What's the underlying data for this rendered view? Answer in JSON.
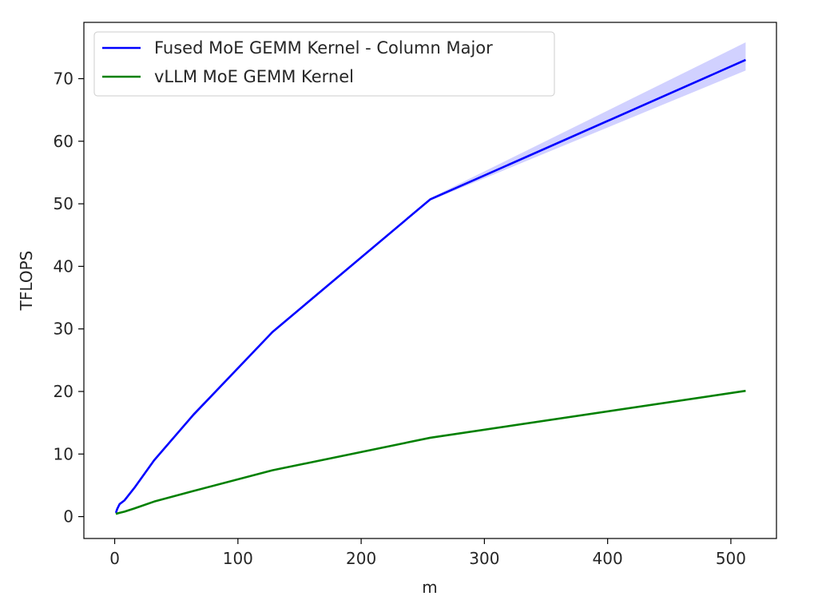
{
  "chart_data": {
    "type": "line",
    "title": "",
    "xlabel": "m",
    "ylabel": "TFLOPS",
    "xlim": [
      -25,
      537
    ],
    "ylim": [
      -3.5,
      79
    ],
    "xticks": [
      0,
      100,
      200,
      300,
      400,
      500
    ],
    "yticks": [
      0,
      10,
      20,
      30,
      40,
      50,
      60,
      70
    ],
    "grid": false,
    "legend_position": "top-left",
    "series": [
      {
        "name": "Fused MoE GEMM Kernel - Column Major",
        "color": "#0000ff",
        "band_color": "#0000ff",
        "x": [
          1,
          2,
          4,
          8,
          16,
          32,
          64,
          128,
          256,
          512
        ],
        "y": [
          0.6,
          1.2,
          2.0,
          2.6,
          4.6,
          9.0,
          16.3,
          29.5,
          50.7,
          73.0
        ],
        "y_low": [
          0.6,
          1.2,
          2.0,
          2.6,
          4.5,
          8.9,
          16.0,
          29.3,
          50.5,
          71.3
        ],
        "y_high": [
          0.6,
          1.2,
          2.0,
          2.6,
          4.7,
          9.1,
          16.6,
          29.7,
          50.9,
          75.8
        ]
      },
      {
        "name": "vLLM MoE GEMM Kernel",
        "color": "#008000",
        "x": [
          1,
          2,
          4,
          8,
          16,
          32,
          64,
          128,
          256,
          512
        ],
        "y": [
          0.4,
          0.5,
          0.6,
          0.8,
          1.3,
          2.4,
          4.1,
          7.4,
          12.6,
          20.1
        ]
      }
    ]
  }
}
